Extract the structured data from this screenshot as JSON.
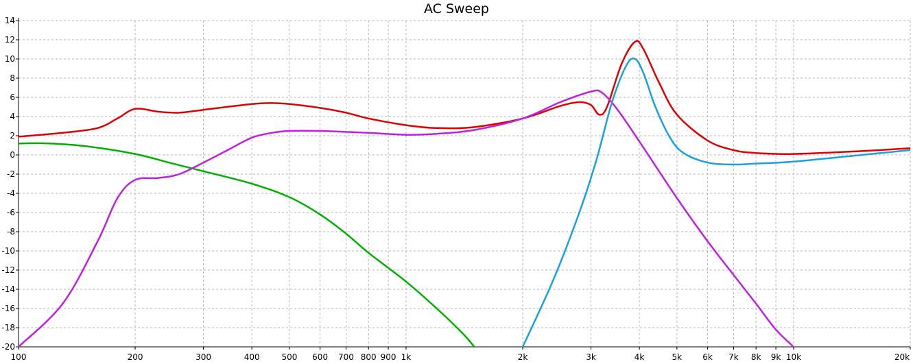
{
  "chart_data": {
    "type": "line",
    "title": "AC Sweep",
    "xscale": "log",
    "xlim": [
      100,
      20000
    ],
    "ylim": [
      -20,
      14
    ],
    "grid": true,
    "x_ticks": [
      100,
      200,
      300,
      400,
      500,
      600,
      700,
      800,
      900,
      1000,
      2000,
      3000,
      4000,
      5000,
      6000,
      7000,
      8000,
      9000,
      10000,
      20000
    ],
    "x_tick_labels": [
      "100",
      "200",
      "300",
      "400",
      "500",
      "600",
      "700",
      "800",
      "900",
      "1k",
      "2k",
      "3k",
      "4k",
      "5k",
      "6k",
      "7k",
      "8k",
      "9k",
      "10k",
      "20k"
    ],
    "y_ticks": [
      -20,
      -18,
      -16,
      -14,
      -12,
      -10,
      -8,
      -6,
      -4,
      -2,
      0,
      2,
      4,
      6,
      8,
      10,
      12,
      14
    ],
    "y_tick_labels": [
      "-20",
      "-18",
      "-16",
      "-14",
      "-12",
      "-10",
      "-8",
      "-6",
      "-4",
      "-2",
      "0",
      "2",
      "4",
      "6",
      "8",
      "10",
      "12",
      "14"
    ],
    "series": [
      {
        "color": "#e00000",
        "points": [
          [
            100,
            1.9
          ],
          [
            130,
            2.3
          ],
          [
            160,
            2.8
          ],
          [
            180,
            3.8
          ],
          [
            200,
            4.8
          ],
          [
            230,
            4.5
          ],
          [
            260,
            4.4
          ],
          [
            300,
            4.7
          ],
          [
            400,
            5.3
          ],
          [
            450,
            5.4
          ],
          [
            500,
            5.3
          ],
          [
            600,
            4.9
          ],
          [
            700,
            4.4
          ],
          [
            800,
            3.8
          ],
          [
            1000,
            3.1
          ],
          [
            1200,
            2.8
          ],
          [
            1500,
            2.9
          ],
          [
            2000,
            3.8
          ],
          [
            2500,
            5.1
          ],
          [
            2800,
            5.5
          ],
          [
            3000,
            5.2
          ],
          [
            3150,
            4.2
          ],
          [
            3300,
            5.0
          ],
          [
            3600,
            9.5
          ],
          [
            3900,
            11.8
          ],
          [
            4100,
            11.0
          ],
          [
            4500,
            7.5
          ],
          [
            5000,
            4.2
          ],
          [
            6000,
            1.5
          ],
          [
            7000,
            0.5
          ],
          [
            8000,
            0.2
          ],
          [
            10000,
            0.1
          ],
          [
            15000,
            0.4
          ],
          [
            20000,
            0.7
          ]
        ]
      },
      {
        "color": "#00b000",
        "points": [
          [
            100,
            1.2
          ],
          [
            120,
            1.2
          ],
          [
            150,
            0.9
          ],
          [
            200,
            0.1
          ],
          [
            250,
            -0.9
          ],
          [
            300,
            -1.7
          ],
          [
            400,
            -3.0
          ],
          [
            500,
            -4.4
          ],
          [
            600,
            -6.2
          ],
          [
            700,
            -8.2
          ],
          [
            800,
            -10.2
          ],
          [
            1000,
            -13.2
          ],
          [
            1200,
            -16.0
          ],
          [
            1400,
            -18.6
          ],
          [
            1500,
            -20.0
          ]
        ]
      },
      {
        "color": "#c020e0",
        "points": [
          [
            100,
            -20.0
          ],
          [
            130,
            -15.5
          ],
          [
            160,
            -9.0
          ],
          [
            180,
            -4.5
          ],
          [
            200,
            -2.6
          ],
          [
            230,
            -2.4
          ],
          [
            260,
            -2.0
          ],
          [
            300,
            -0.8
          ],
          [
            350,
            0.6
          ],
          [
            400,
            1.8
          ],
          [
            450,
            2.3
          ],
          [
            500,
            2.5
          ],
          [
            600,
            2.5
          ],
          [
            700,
            2.4
          ],
          [
            800,
            2.3
          ],
          [
            1000,
            2.1
          ],
          [
            1200,
            2.2
          ],
          [
            1500,
            2.6
          ],
          [
            2000,
            3.8
          ],
          [
            2500,
            5.5
          ],
          [
            3000,
            6.6
          ],
          [
            3200,
            6.5
          ],
          [
            3500,
            4.8
          ],
          [
            4000,
            1.4
          ],
          [
            5000,
            -4.5
          ],
          [
            6000,
            -9.0
          ],
          [
            7000,
            -12.5
          ],
          [
            8000,
            -15.5
          ],
          [
            9000,
            -18.2
          ],
          [
            10000,
            -20.0
          ]
        ]
      },
      {
        "color": "#1aa0e0",
        "points": [
          [
            2000,
            -20.0
          ],
          [
            2400,
            -13.0
          ],
          [
            2800,
            -6.0
          ],
          [
            3100,
            -0.5
          ],
          [
            3400,
            5.5
          ],
          [
            3700,
            9.3
          ],
          [
            3900,
            10.0
          ],
          [
            4100,
            8.5
          ],
          [
            4400,
            5.0
          ],
          [
            4800,
            1.8
          ],
          [
            5200,
            0.2
          ],
          [
            6000,
            -0.8
          ],
          [
            7000,
            -1.0
          ],
          [
            8000,
            -0.9
          ],
          [
            10000,
            -0.7
          ],
          [
            15000,
            0.0
          ],
          [
            20000,
            0.5
          ]
        ]
      }
    ]
  }
}
